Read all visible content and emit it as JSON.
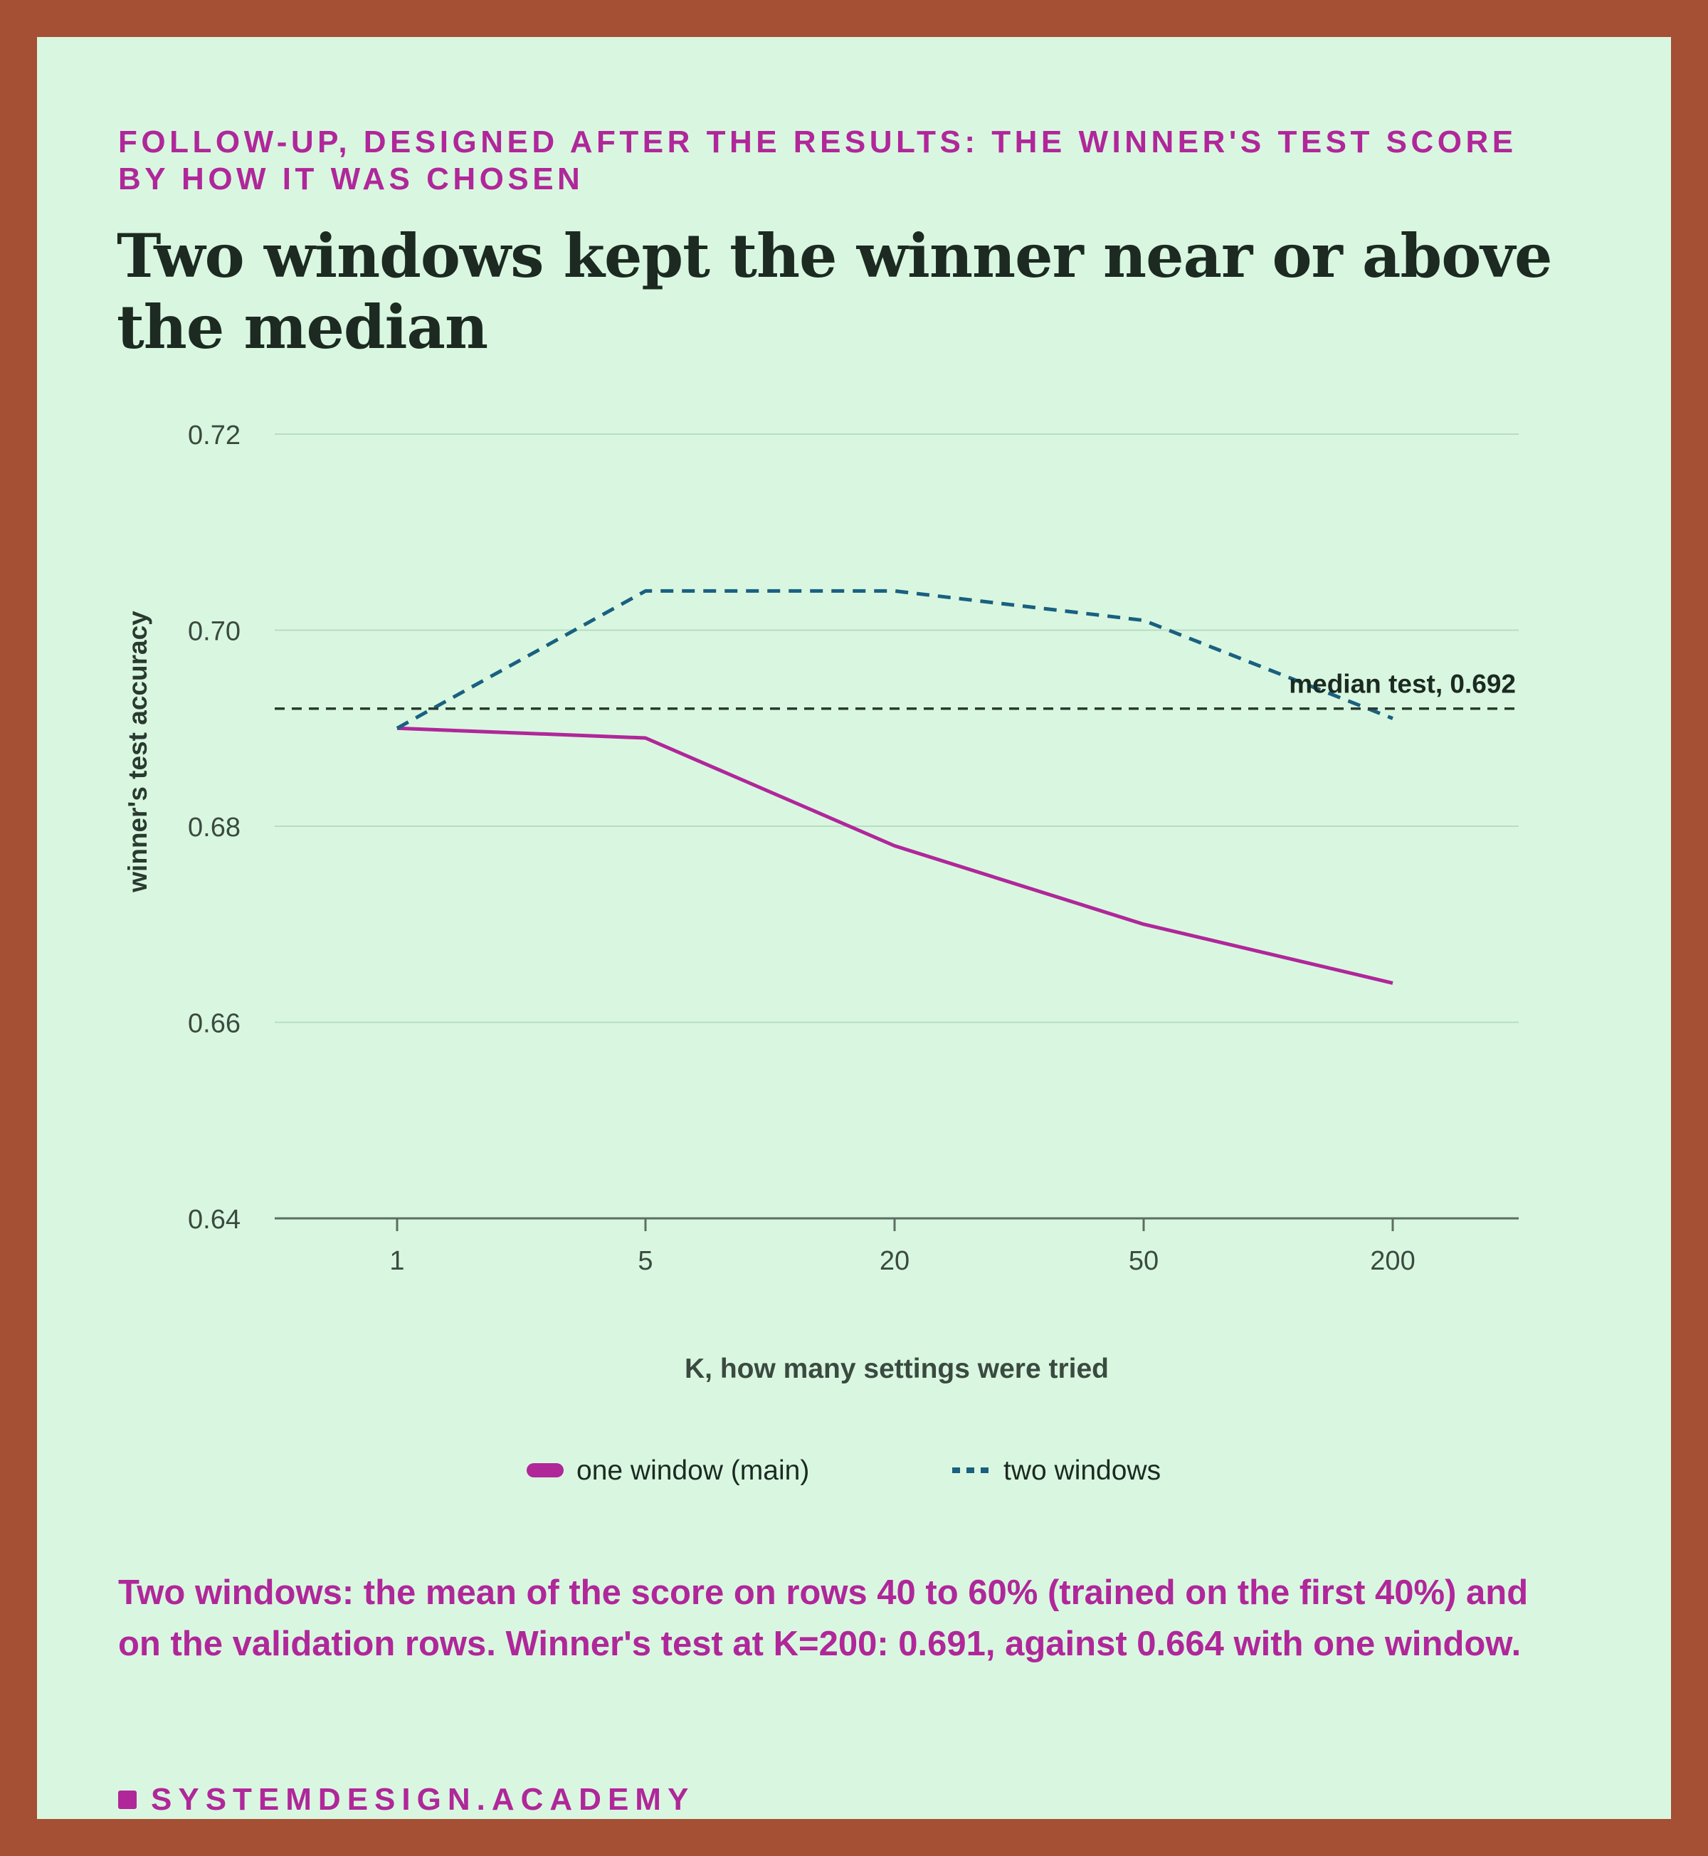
{
  "header": {
    "kicker": "FOLLOW-UP, DESIGNED AFTER THE RESULTS: THE WINNER'S TEST SCORE BY HOW IT WAS CHOSEN",
    "title": "Two windows kept the winner near or above the median"
  },
  "note": "Two windows: the mean of the score on rows 40 to 60% (trained on the first 40%) and on the validation rows. Winner's test at K=200: 0.691, against 0.664 with one window.",
  "brand": "SYSTEMDESIGN.ACADEMY",
  "colors": {
    "background": "#d9f7e0",
    "frame": "#a54f34",
    "accent": "#b0279a",
    "one_window": "#b0279a",
    "two_windows": "#1a6080",
    "median": "#2a3a30"
  },
  "chart_data": {
    "type": "line",
    "categories": [
      "1",
      "5",
      "20",
      "50",
      "200"
    ],
    "series": [
      {
        "name": "one window (main)",
        "style": "solid",
        "values": [
          0.69,
          0.689,
          0.678,
          0.67,
          0.664
        ]
      },
      {
        "name": "two windows",
        "style": "dashed",
        "values": [
          0.69,
          0.704,
          0.704,
          0.701,
          0.691
        ]
      }
    ],
    "reference_line": {
      "value": 0.692,
      "label": "median test, 0.692"
    },
    "ylim": [
      0.64,
      0.72
    ],
    "yticks": [
      "0.64",
      "0.66",
      "0.68",
      "0.70",
      "0.72"
    ],
    "yticks_values": [
      0.64,
      0.66,
      0.68,
      0.7,
      0.72
    ],
    "xlabel": "K, how many settings were tried",
    "ylabel": "winner's test accuracy",
    "grid": true,
    "legend": "bottom-center"
  }
}
